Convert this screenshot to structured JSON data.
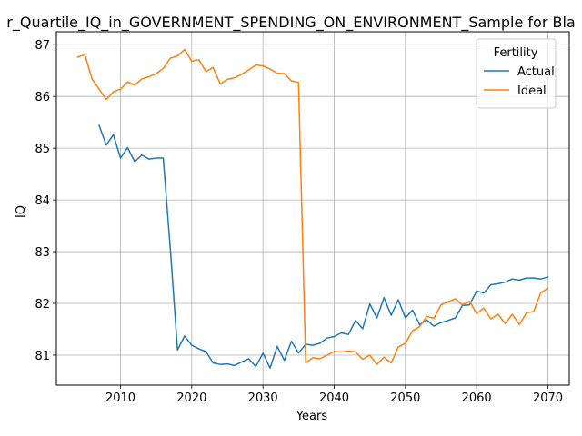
{
  "chart_data": {
    "type": "line",
    "title": "r_Quartile_IQ_in_GOVERNMENT_SPENDING_ON_ENVIRONMENT_Sample for Bla",
    "xlabel": "Years",
    "ylabel": "IQ",
    "xlim": [
      2001,
      2073
    ],
    "ylim": [
      80.42,
      87.25
    ],
    "xticks": [
      2010,
      2020,
      2030,
      2040,
      2050,
      2060,
      2070
    ],
    "yticks": [
      81,
      82,
      83,
      84,
      85,
      86,
      87
    ],
    "grid": true,
    "legend": {
      "title": "Fertility",
      "position": "top-right"
    },
    "series": [
      {
        "name": "Actual",
        "color": "#1f77b4",
        "x": [
          2007,
          2008,
          2009,
          2010,
          2011,
          2012,
          2013,
          2014,
          2015,
          2016,
          2017,
          2018,
          2019,
          2020,
          2021,
          2022,
          2023,
          2024,
          2025,
          2026,
          2027,
          2028,
          2029,
          2030,
          2031,
          2032,
          2033,
          2034,
          2035,
          2036,
          2037,
          2038,
          2039,
          2040,
          2041,
          2042,
          2043,
          2044,
          2045,
          2046,
          2047,
          2048,
          2049,
          2050,
          2051,
          2052,
          2053,
          2054,
          2055,
          2056,
          2057,
          2058,
          2059,
          2060,
          2061,
          2062,
          2063,
          2064,
          2065,
          2066,
          2067,
          2068,
          2069,
          2070
        ],
        "y": [
          85.44,
          85.06,
          85.26,
          84.81,
          85.01,
          84.74,
          84.87,
          84.79,
          84.81,
          84.81,
          83.05,
          81.1,
          81.37,
          81.19,
          81.12,
          81.07,
          80.85,
          80.82,
          80.83,
          80.8,
          80.87,
          80.93,
          80.78,
          81.04,
          80.75,
          81.17,
          80.9,
          81.27,
          81.04,
          81.21,
          81.19,
          81.23,
          81.33,
          81.36,
          81.43,
          81.4,
          81.67,
          81.51,
          81.99,
          81.72,
          82.11,
          81.77,
          82.07,
          81.72,
          81.87,
          81.59,
          81.68,
          81.56,
          81.63,
          81.67,
          81.72,
          81.96,
          81.97,
          82.24,
          82.2,
          82.36,
          82.38,
          82.41,
          82.47,
          82.45,
          82.49,
          82.49,
          82.47,
          82.51
        ]
      },
      {
        "name": "Ideal",
        "color": "#ff7f0e",
        "x": [
          2004,
          2005,
          2006,
          2007,
          2008,
          2009,
          2010,
          2011,
          2012,
          2013,
          2014,
          2015,
          2016,
          2017,
          2018,
          2019,
          2020,
          2021,
          2022,
          2023,
          2024,
          2025,
          2026,
          2027,
          2028,
          2029,
          2030,
          2031,
          2032,
          2033,
          2034,
          2035,
          2036,
          2037,
          2038,
          2039,
          2040,
          2041,
          2042,
          2043,
          2044,
          2045,
          2046,
          2047,
          2048,
          2049,
          2050,
          2051,
          2052,
          2053,
          2054,
          2055,
          2056,
          2057,
          2058,
          2059,
          2060,
          2061,
          2062,
          2063,
          2064,
          2065,
          2066,
          2067,
          2068,
          2069,
          2070
        ],
        "y": [
          86.76,
          86.81,
          86.34,
          86.14,
          85.94,
          86.09,
          86.14,
          86.28,
          86.22,
          86.34,
          86.38,
          86.44,
          86.54,
          86.74,
          86.78,
          86.91,
          86.68,
          86.71,
          86.48,
          86.56,
          86.24,
          86.33,
          86.36,
          86.43,
          86.51,
          86.61,
          86.59,
          86.53,
          86.45,
          86.44,
          86.3,
          86.27,
          80.85,
          80.95,
          80.93,
          81.0,
          81.07,
          81.06,
          81.08,
          81.06,
          80.92,
          81.0,
          80.82,
          80.96,
          80.85,
          81.16,
          81.23,
          81.47,
          81.55,
          81.75,
          81.71,
          81.97,
          82.03,
          82.09,
          81.97,
          82.04,
          81.8,
          81.91,
          81.7,
          81.79,
          81.61,
          81.79,
          81.59,
          81.82,
          81.84,
          82.21,
          82.29
        ]
      }
    ]
  }
}
